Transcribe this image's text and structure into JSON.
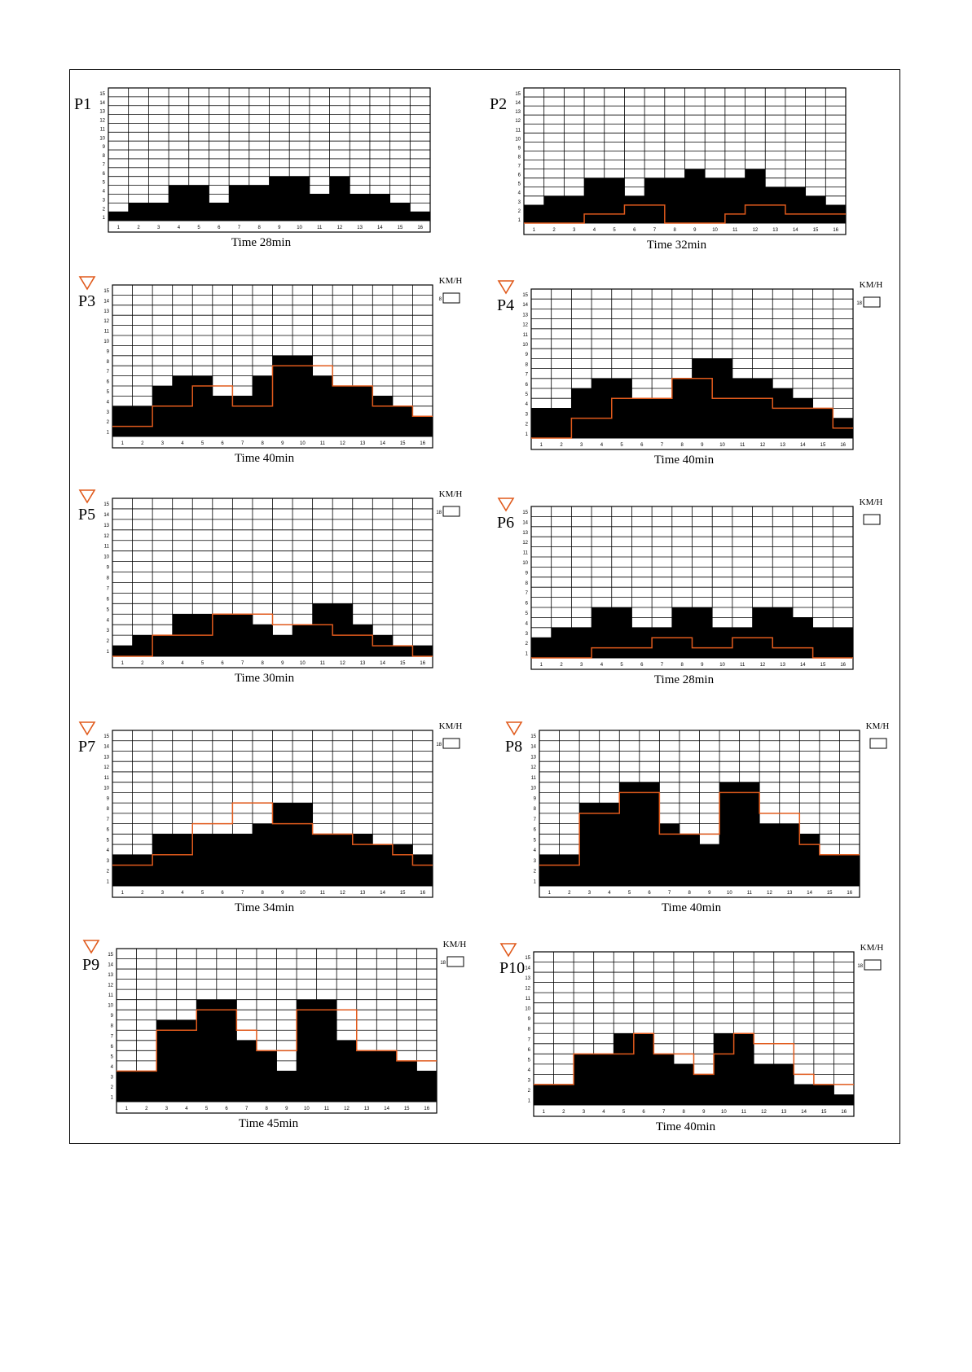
{
  "chart_data": [
    {
      "type": "bar",
      "title": "P1",
      "caption": "Time 28min",
      "categories": [
        "1",
        "2",
        "3",
        "4",
        "5",
        "6",
        "7",
        "8",
        "9",
        "10",
        "11",
        "12",
        "13",
        "14",
        "15",
        "16"
      ],
      "ylim": [
        0,
        15
      ],
      "series": [
        {
          "values": [
            1,
            2,
            2,
            4,
            4,
            2,
            4,
            4,
            5,
            5,
            3,
            5,
            3,
            3,
            2,
            1
          ]
        }
      ],
      "speed_line": null,
      "speed_unit": "",
      "speed_box_value": "",
      "accent_color": "#e05a1c"
    },
    {
      "type": "bar",
      "title": "P2",
      "caption": "Time 32min",
      "categories": [
        "1",
        "2",
        "3",
        "4",
        "5",
        "6",
        "7",
        "8",
        "9",
        "10",
        "11",
        "12",
        "13",
        "14",
        "15",
        "16"
      ],
      "ylim": [
        0,
        15
      ],
      "series": [
        {
          "values": [
            2,
            3,
            3,
            5,
            5,
            3,
            5,
            5,
            6,
            5,
            5,
            6,
            4,
            4,
            3,
            2
          ]
        }
      ],
      "speed_line": [
        0,
        0,
        0,
        1,
        1,
        2,
        2,
        0,
        0,
        0,
        1,
        2,
        2,
        1,
        1,
        1
      ],
      "speed_unit": "",
      "speed_box_value": "",
      "accent_color": "#e05a1c"
    },
    {
      "type": "bar",
      "title": "P3",
      "caption": "Time 40min",
      "categories": [
        "1",
        "2",
        "3",
        "4",
        "5",
        "6",
        "7",
        "8",
        "9",
        "10",
        "11",
        "12",
        "13",
        "14",
        "15",
        "16"
      ],
      "ylim": [
        0,
        15
      ],
      "series": [
        {
          "values": [
            3,
            3,
            5,
            6,
            6,
            4,
            4,
            6,
            8,
            8,
            6,
            5,
            5,
            4,
            3,
            2
          ]
        }
      ],
      "speed_line": [
        1,
        1,
        3,
        3,
        5,
        5,
        3,
        3,
        7,
        7,
        7,
        5,
        5,
        3,
        3,
        2
      ],
      "speed_unit": "KM/H",
      "speed_box_value": "8",
      "accent_color": "#e05a1c"
    },
    {
      "type": "bar",
      "title": "P4",
      "caption": "Time 40min",
      "categories": [
        "1",
        "2",
        "3",
        "4",
        "5",
        "6",
        "7",
        "8",
        "9",
        "10",
        "11",
        "12",
        "13",
        "14",
        "15",
        "16"
      ],
      "ylim": [
        0,
        15
      ],
      "series": [
        {
          "values": [
            3,
            3,
            5,
            6,
            6,
            4,
            4,
            6,
            8,
            8,
            6,
            6,
            5,
            4,
            3,
            2
          ]
        }
      ],
      "speed_line": [
        0,
        0,
        2,
        2,
        4,
        4,
        4,
        6,
        6,
        4,
        4,
        4,
        3,
        3,
        3,
        1
      ],
      "speed_unit": "KM/H",
      "speed_box_value": "18",
      "accent_color": "#e05a1c"
    },
    {
      "type": "bar",
      "title": "P5",
      "caption": "Time 30min",
      "categories": [
        "1",
        "2",
        "3",
        "4",
        "5",
        "6",
        "7",
        "8",
        "9",
        "10",
        "11",
        "12",
        "13",
        "14",
        "15",
        "16"
      ],
      "ylim": [
        0,
        15
      ],
      "series": [
        {
          "values": [
            1,
            2,
            2,
            4,
            4,
            4,
            4,
            3,
            2,
            3,
            5,
            5,
            3,
            2,
            1,
            1
          ]
        }
      ],
      "speed_line": [
        0,
        0,
        2,
        2,
        2,
        4,
        4,
        4,
        3,
        3,
        3,
        2,
        2,
        1,
        1,
        0
      ],
      "speed_unit": "KM/H",
      "speed_box_value": "18",
      "accent_color": "#e05a1c"
    },
    {
      "type": "bar",
      "title": "P6",
      "caption": "Time 28min",
      "categories": [
        "1",
        "2",
        "3",
        "4",
        "5",
        "6",
        "7",
        "8",
        "9",
        "10",
        "11",
        "12",
        "13",
        "14",
        "15",
        "16"
      ],
      "ylim": [
        0,
        15
      ],
      "series": [
        {
          "values": [
            2,
            3,
            3,
            5,
            5,
            3,
            3,
            5,
            5,
            3,
            3,
            5,
            5,
            4,
            3,
            3
          ]
        }
      ],
      "speed_line": [
        0,
        0,
        0,
        1,
        1,
        1,
        2,
        2,
        1,
        1,
        2,
        2,
        1,
        1,
        0,
        0
      ],
      "speed_unit": "KM/H",
      "speed_box_value": "",
      "accent_color": "#e05a1c"
    },
    {
      "type": "bar",
      "title": "P7",
      "caption": "Time 34min",
      "categories": [
        "1",
        "2",
        "3",
        "4",
        "5",
        "6",
        "7",
        "8",
        "9",
        "10",
        "11",
        "12",
        "13",
        "14",
        "15",
        "16"
      ],
      "ylim": [
        0,
        15
      ],
      "series": [
        {
          "values": [
            3,
            3,
            5,
            5,
            5,
            5,
            5,
            6,
            8,
            8,
            5,
            5,
            5,
            4,
            4,
            3
          ]
        }
      ],
      "speed_line": [
        2,
        2,
        3,
        3,
        6,
        6,
        8,
        8,
        6,
        6,
        5,
        5,
        4,
        4,
        3,
        2
      ],
      "speed_unit": "KM/H",
      "speed_box_value": "18",
      "accent_color": "#e05a1c"
    },
    {
      "type": "bar",
      "title": "P8",
      "caption": "Time 40min",
      "categories": [
        "1",
        "2",
        "3",
        "4",
        "5",
        "6",
        "7",
        "8",
        "9",
        "10",
        "11",
        "12",
        "13",
        "14",
        "15",
        "16"
      ],
      "ylim": [
        0,
        15
      ],
      "series": [
        {
          "values": [
            3,
            3,
            8,
            8,
            10,
            10,
            6,
            5,
            4,
            10,
            10,
            6,
            6,
            5,
            3,
            3
          ]
        }
      ],
      "speed_line": [
        2,
        2,
        7,
        7,
        9,
        9,
        5,
        5,
        5,
        9,
        9,
        7,
        7,
        4,
        3,
        3
      ],
      "speed_unit": "KM/H",
      "speed_box_value": "",
      "accent_color": "#e05a1c"
    },
    {
      "type": "bar",
      "title": "P9",
      "caption": "Time 45min",
      "categories": [
        "1",
        "2",
        "3",
        "4",
        "5",
        "6",
        "7",
        "8",
        "9",
        "10",
        "11",
        "12",
        "13",
        "14",
        "15",
        "16"
      ],
      "ylim": [
        0,
        15
      ],
      "series": [
        {
          "values": [
            3,
            3,
            8,
            8,
            10,
            10,
            6,
            5,
            3,
            10,
            10,
            6,
            5,
            5,
            4,
            3
          ]
        }
      ],
      "speed_line": [
        3,
        3,
        7,
        7,
        9,
        9,
        7,
        5,
        5,
        9,
        9,
        9,
        5,
        5,
        4,
        4
      ],
      "speed_unit": "KM/H",
      "speed_box_value": "18",
      "accent_color": "#e05a1c"
    },
    {
      "type": "bar",
      "title": "P10",
      "caption": "Time 40min",
      "categories": [
        "1",
        "2",
        "3",
        "4",
        "5",
        "6",
        "7",
        "8",
        "9",
        "10",
        "11",
        "12",
        "13",
        "14",
        "15",
        "16"
      ],
      "ylim": [
        0,
        15
      ],
      "series": [
        {
          "values": [
            2,
            2,
            5,
            5,
            7,
            7,
            5,
            4,
            3,
            7,
            7,
            4,
            4,
            2,
            2,
            1
          ]
        }
      ],
      "speed_line": [
        2,
        2,
        5,
        5,
        5,
        7,
        5,
        5,
        3,
        5,
        7,
        6,
        6,
        3,
        2,
        2
      ],
      "speed_unit": "KM/H",
      "speed_box_value": "18",
      "accent_color": "#e05a1c"
    }
  ]
}
